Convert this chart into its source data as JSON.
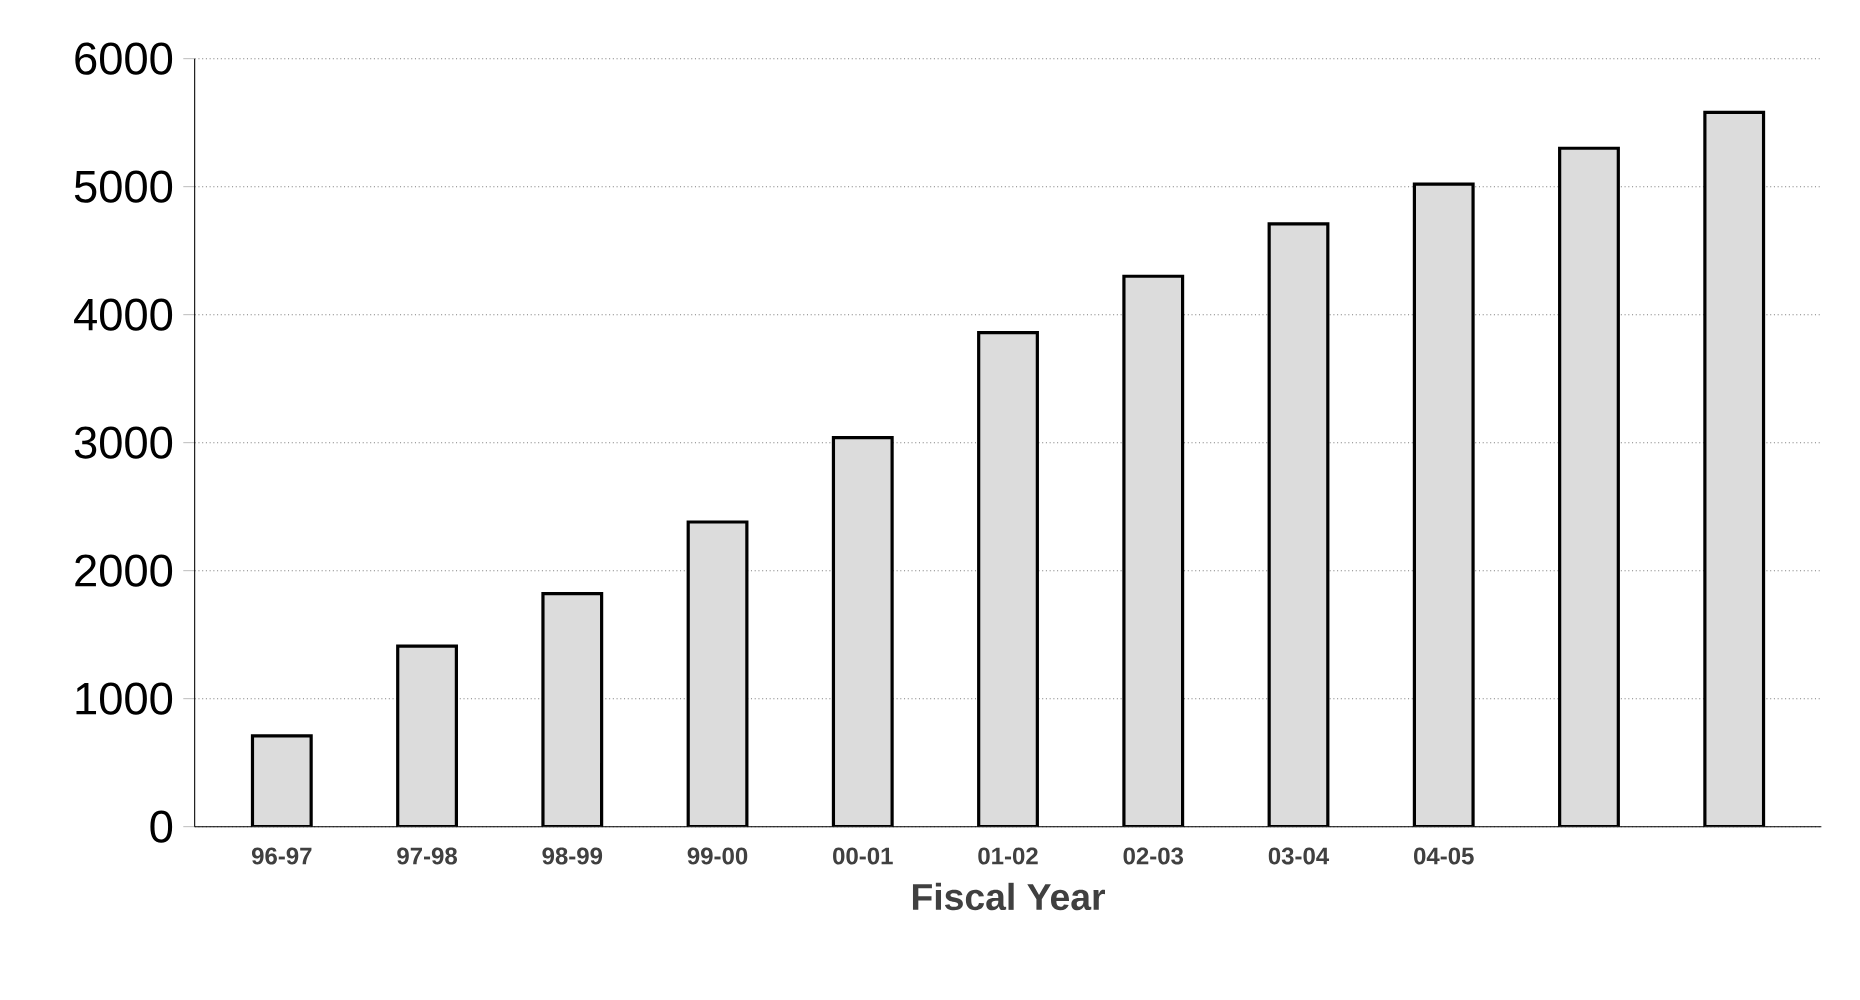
{
  "chart_data": {
    "type": "bar",
    "xlabel": "Fiscal Year",
    "categories": [
      "96-97",
      "97-98",
      "98-99",
      "99-00",
      "00-01",
      "01-02",
      "02-03",
      "03-04",
      "04-05",
      null,
      null
    ],
    "values": [
      710,
      1410,
      1820,
      2380,
      3040,
      3860,
      4300,
      4710,
      5020,
      5300,
      5580
    ],
    "color": "#dcdcdc",
    "ylim": [
      0,
      6000
    ],
    "yticks": [
      0,
      1000,
      2000,
      3000,
      4000,
      5000,
      6000
    ],
    "grid": "y"
  }
}
